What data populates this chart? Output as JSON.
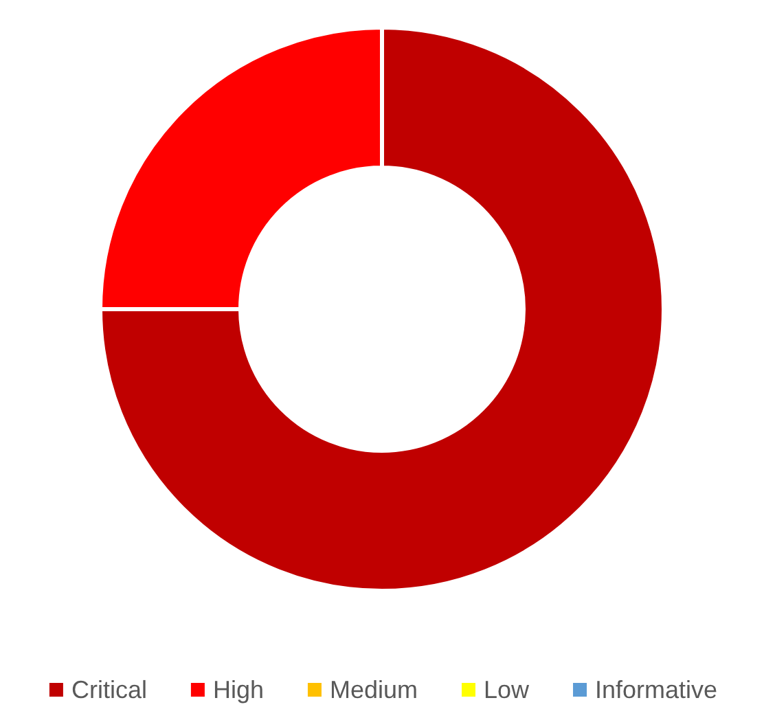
{
  "chart_data": {
    "type": "donut",
    "categories": [
      "Critical",
      "High",
      "Medium",
      "Low",
      "Informative"
    ],
    "values": [
      75,
      25,
      0,
      0,
      0
    ],
    "colors": [
      "#c00000",
      "#ff0000",
      "#ffc000",
      "#ffff00",
      "#5b9bd5"
    ],
    "legend": "bottom"
  }
}
